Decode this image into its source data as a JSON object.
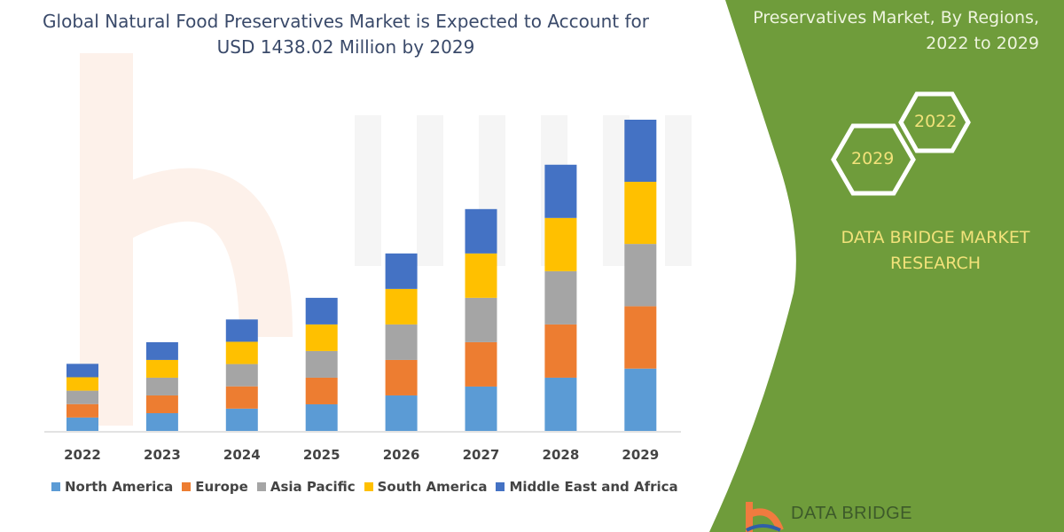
{
  "header": {
    "title": "Global Natural Food Preservatives Market is Expected to Account for USD 1438.02 Million by 2029",
    "side_title": "Preservatives Market, By Regions, 2022 to 2029",
    "hex_years": [
      "2022",
      "2029"
    ],
    "brand": "DATA BRIDGE MARKET RESEARCH",
    "logo_text": "DATA BRIDGE",
    "watermark": "DATA BRIDGE"
  },
  "colors": {
    "panel_green": "#6f9c3b",
    "accent_yellow": "#f2e27a"
  },
  "chart_data": {
    "type": "bar",
    "stacked": true,
    "title": "Global Natural Food Preservatives Market is Expected to Account for USD 1438.02 Million by 2029",
    "xlabel": "",
    "ylabel": "",
    "grid": false,
    "legend_position": "bottom",
    "categories": [
      "2022",
      "2023",
      "2024",
      "2025",
      "2026",
      "2027",
      "2028",
      "2029"
    ],
    "ylim": [
      0,
      1450
    ],
    "series": [
      {
        "name": "North America",
        "color": "#5b9bd5",
        "values": [
          62,
          82,
          103,
          123,
          164,
          205,
          246,
          288
        ]
      },
      {
        "name": "Europe",
        "color": "#ed7d31",
        "values": [
          62,
          82,
          103,
          123,
          164,
          205,
          246,
          288
        ]
      },
      {
        "name": "Asia Pacific",
        "color": "#a5a5a5",
        "values": [
          62,
          82,
          103,
          123,
          164,
          205,
          246,
          288
        ]
      },
      {
        "name": "South America",
        "color": "#ffc000",
        "values": [
          62,
          82,
          103,
          123,
          164,
          205,
          246,
          287
        ]
      },
      {
        "name": "Middle East and Africa",
        "color": "#4472c4",
        "values": [
          62,
          82,
          103,
          123,
          164,
          205,
          246,
          287
        ]
      }
    ]
  }
}
